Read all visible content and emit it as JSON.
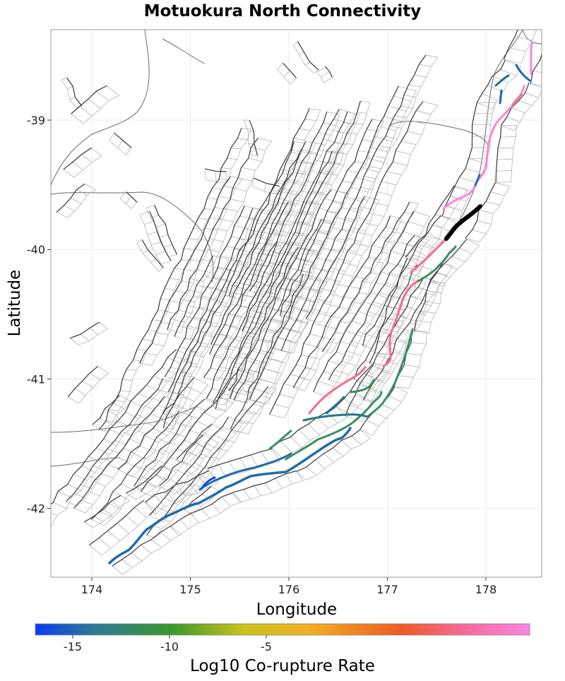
{
  "title": "Motuokura North Connectivity",
  "x_axis": {
    "label": "Longitude",
    "ticks": [
      {
        "value": 174,
        "label": "174"
      },
      {
        "value": 175,
        "label": "175"
      },
      {
        "value": 176,
        "label": "176"
      },
      {
        "value": 177,
        "label": "177"
      },
      {
        "value": 178,
        "label": "178"
      }
    ]
  },
  "y_axis": {
    "label": "Latitude",
    "ticks": [
      {
        "value": -39,
        "label": "-39"
      },
      {
        "value": -40,
        "label": "-40"
      },
      {
        "value": -41,
        "label": "-41"
      },
      {
        "value": -42,
        "label": "-42"
      }
    ]
  },
  "colorbar": {
    "label": "Log10 Co-rupture Rate",
    "ticks": [
      {
        "value": -15,
        "label": "-15"
      },
      {
        "value": -10,
        "label": "-10"
      },
      {
        "value": -5,
        "label": "-5"
      }
    ],
    "colors": {
      "c1": "#0a3cf5",
      "c2": "#2e7a94",
      "c3": "#3d9a2a",
      "c4": "#c9c21a",
      "c5": "#f5b021",
      "c6": "#ef5a23",
      "c7": "#f9699a",
      "c8": "#fb86e6"
    }
  },
  "target_color": "#000000"
}
